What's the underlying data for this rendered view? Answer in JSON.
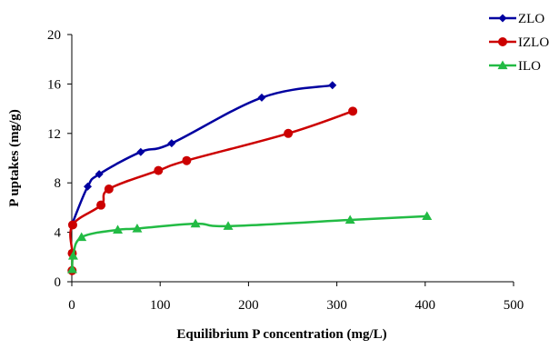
{
  "chart_data": {
    "type": "line",
    "title": "",
    "xlabel": "Equilibrium P concentration (mg/L)",
    "ylabel": "P uptakes (mg/g)",
    "xlim": [
      0,
      500
    ],
    "ylim": [
      0,
      20
    ],
    "x_ticks": [
      0,
      100,
      200,
      300,
      400,
      500
    ],
    "y_ticks": [
      0,
      4,
      8,
      12,
      16,
      20
    ],
    "grid": false,
    "legend_position": "top-right",
    "series": [
      {
        "name": "ZLO",
        "color": "#0000a0",
        "marker": "diamond",
        "x": [
          0.5,
          18,
          31,
          78,
          113,
          215,
          295
        ],
        "y": [
          4.7,
          7.7,
          8.7,
          10.5,
          11.2,
          14.9,
          15.9
        ]
      },
      {
        "name": "IZLO",
        "color": "#cc0000",
        "marker": "circle",
        "x": [
          0.3,
          0.5,
          1,
          33,
          42,
          98,
          130,
          245,
          318
        ],
        "y": [
          0.9,
          2.3,
          4.6,
          6.2,
          7.5,
          9.0,
          9.8,
          12.0,
          13.8
        ]
      },
      {
        "name": "ILO",
        "color": "#22bb44",
        "marker": "triangle",
        "x": [
          0.5,
          1.5,
          11,
          52,
          74,
          140,
          177,
          315,
          402
        ],
        "y": [
          1.0,
          2.1,
          3.6,
          4.2,
          4.3,
          4.7,
          4.5,
          5.0,
          5.3
        ]
      }
    ]
  }
}
